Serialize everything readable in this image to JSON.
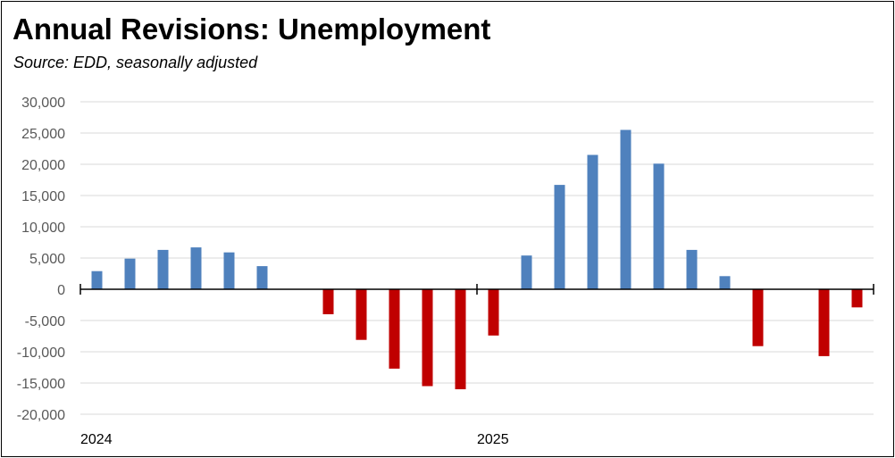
{
  "chart_data": {
    "type": "bar",
    "title": "Annual Revisions:  Unemployment",
    "subtitle": "Source:  EDD, seasonally adjusted",
    "xlabel": "",
    "ylabel": "",
    "ylim": [
      -20000,
      30000
    ],
    "yticks": [
      30000,
      25000,
      20000,
      15000,
      10000,
      5000,
      0,
      -5000,
      -10000,
      -15000,
      -20000
    ],
    "ytick_labels": [
      "30,000",
      "25,000",
      "20,000",
      "15,000",
      "10,000",
      "5,000",
      "0",
      "-5,000",
      "-10,000",
      "-15,000",
      "-20,000"
    ],
    "grid": true,
    "categories": [
      "2024-01",
      "2024-02",
      "2024-03",
      "2024-04",
      "2024-05",
      "2024-06",
      "2024-07",
      "2024-08",
      "2024-09",
      "2024-10",
      "2024-11",
      "2024-12",
      "2025-01",
      "2025-02",
      "2025-03",
      "2025-04",
      "2025-05",
      "2025-06",
      "2025-07",
      "2025-08",
      "2025-09",
      "2025-10",
      "2025-11",
      "2025-12"
    ],
    "category_labels": [
      {
        "index": 0,
        "text": "2024"
      },
      {
        "index": 12,
        "text": "2025"
      }
    ],
    "values": [
      2900,
      4900,
      6300,
      6700,
      5900,
      3700,
      null,
      -4000,
      -8100,
      -12700,
      -15500,
      -16000,
      -7400,
      5400,
      16700,
      21500,
      25500,
      20100,
      6300,
      2100,
      -9100,
      null,
      -10700,
      -2900
    ],
    "positive_color": "#4f81bd",
    "negative_color": "#c00000"
  }
}
